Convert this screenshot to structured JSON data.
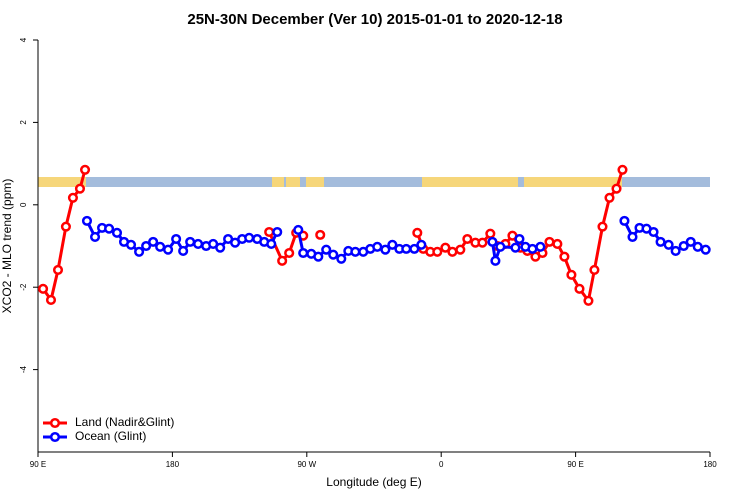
{
  "chart_data": {
    "type": "line",
    "title": "25N-30N December (Ver 10)   2015-01-01 to 2020-12-18",
    "x_label": "Longitude (deg E)",
    "y_label": "XCO2 - MLO trend (ppm)",
    "xlim": [
      90,
      540
    ],
    "xticks": [
      {
        "value": 90,
        "label": "90 E"
      },
      {
        "value": 180,
        "label": "180"
      },
      {
        "value": 270,
        "label": "90 W"
      },
      {
        "value": 360,
        "label": "0"
      },
      {
        "value": 450,
        "label": "90 E"
      },
      {
        "value": 540,
        "label": "180"
      }
    ],
    "ylim": [
      -6,
      4
    ],
    "yticks": [
      -4,
      -2,
      0,
      2,
      4
    ],
    "legend": "bottom-left",
    "series": [
      {
        "name": "Land (Nadir&Glint)",
        "color": "#ff0000",
        "x": [
          93.4,
          98.7,
          103.4,
          108.7,
          113.4,
          118.1,
          121.5,
          null,
          244.8,
          253.5,
          258.2,
          262.9,
          267.6,
          null,
          279.0,
          null,
          344.0,
          348.0,
          352.7,
          357.4,
          362.8,
          367.5,
          372.8,
          377.5,
          382.9,
          387.6,
          392.9,
          397.6,
          403.0,
          407.7,
          413.0,
          417.7,
          423.1,
          427.8,
          432.5,
          437.8,
          442.5,
          447.2,
          452.6,
          458.6,
          462.6,
          468.0,
          472.7,
          477.4,
          481.4
        ],
        "values": [
          -2.04,
          -2.31,
          -1.58,
          -0.53,
          0.17,
          0.39,
          0.85,
          null,
          -0.66,
          -1.36,
          -1.17,
          -0.68,
          -0.75,
          null,
          -0.73,
          null,
          -0.68,
          -1.07,
          -1.14,
          -1.14,
          -1.04,
          -1.14,
          -1.09,
          -0.83,
          -0.92,
          -0.92,
          -0.7,
          -1.0,
          -0.95,
          -0.75,
          -1.04,
          -1.12,
          -1.26,
          -1.17,
          -0.9,
          -0.95,
          -1.26,
          -1.7,
          -2.04,
          -2.33,
          -1.58,
          -0.53,
          0.17,
          0.39,
          0.85
        ]
      },
      {
        "name": "Ocean (Glint)",
        "color": "#0000ff",
        "x": [
          122.8,
          128.2,
          132.9,
          137.6,
          142.9,
          147.6,
          152.3,
          157.7,
          162.4,
          167.1,
          171.8,
          177.1,
          182.5,
          187.2,
          191.9,
          197.2,
          202.6,
          207.3,
          212.0,
          217.3,
          222.0,
          226.7,
          231.4,
          236.8,
          241.5,
          246.2,
          250.2,
          null,
          264.3,
          267.6,
          273.0,
          277.7,
          283.0,
          287.7,
          293.1,
          297.8,
          302.5,
          307.8,
          312.5,
          317.2,
          322.6,
          327.3,
          332.0,
          336.6,
          342.0,
          346.7,
          null,
          394.3,
          396.3,
          399.6,
          409.7,
          412.4,
          416.4,
          421.1,
          426.4,
          null,
          482.7,
          488.1,
          492.8,
          497.5,
          502.2,
          506.9,
          512.3,
          517.0,
          522.4,
          527.1,
          531.8,
          537.1
        ],
        "values": [
          -0.39,
          -0.78,
          -0.56,
          -0.58,
          -0.68,
          -0.9,
          -0.97,
          -1.14,
          -1.0,
          -0.9,
          -1.02,
          -1.09,
          -0.83,
          -1.12,
          -0.9,
          -0.95,
          -1.0,
          -0.95,
          -1.04,
          -0.83,
          -0.92,
          -0.83,
          -0.8,
          -0.83,
          -0.9,
          -0.95,
          -0.66,
          null,
          -0.61,
          -1.17,
          -1.19,
          -1.26,
          -1.09,
          -1.21,
          -1.31,
          -1.12,
          -1.14,
          -1.14,
          -1.07,
          -1.02,
          -1.09,
          -0.97,
          -1.07,
          -1.07,
          -1.07,
          -0.97,
          null,
          -0.9,
          -1.36,
          -1.02,
          -1.04,
          -0.83,
          -1.02,
          -1.07,
          -1.02,
          null,
          -0.39,
          -0.78,
          -0.56,
          -0.58,
          -0.66,
          -0.9,
          -0.97,
          -1.12,
          -1.0,
          -0.9,
          -1.02,
          -1.09
        ]
      }
    ]
  }
}
